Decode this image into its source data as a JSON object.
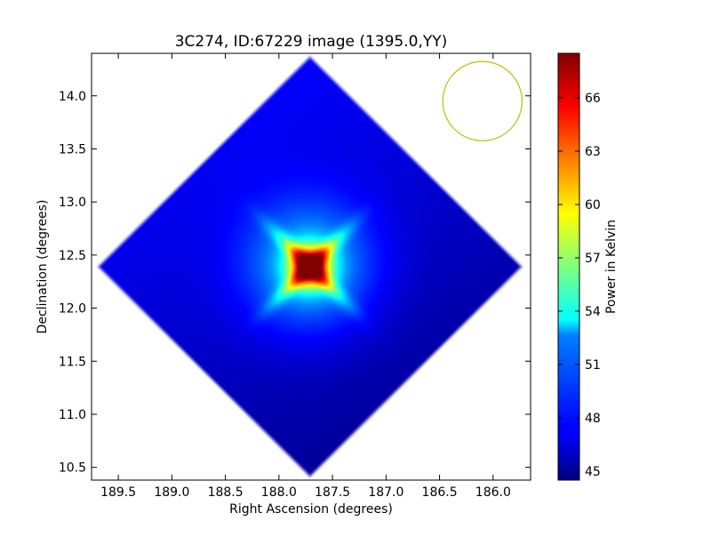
{
  "chart_data": {
    "type": "heatmap",
    "title": "3C274, ID:67229 image (1395.0,YY)",
    "xlabel": "Right Ascension (degrees)",
    "ylabel": "Declination (degrees)",
    "xlim": [
      189.75,
      185.65
    ],
    "ylim": [
      10.38,
      14.4
    ],
    "x_ticks": [
      189.5,
      189.0,
      188.5,
      188.0,
      187.5,
      187.0,
      186.5,
      186.0
    ],
    "x_tick_labels": [
      "189.5",
      "189.0",
      "188.5",
      "188.0",
      "187.5",
      "187.0",
      "186.5",
      "186.0"
    ],
    "y_ticks": [
      10.5,
      11.0,
      11.5,
      12.0,
      12.5,
      13.0,
      13.5,
      14.0
    ],
    "y_tick_labels": [
      "10.5",
      "11.0",
      "11.5",
      "12.0",
      "12.5",
      "13.0",
      "13.5",
      "14.0"
    ],
    "map": {
      "center": [
        187.71,
        12.39
      ],
      "half_width_deg": 2.0,
      "source_peak_kelvin": 68.0,
      "background_kelvin": 46.3
    },
    "beam_circle": {
      "center": [
        186.1,
        13.95
      ],
      "radius_deg": 0.37,
      "color": "#bfbf00"
    },
    "colorbar": {
      "label": "Power in Kelvin",
      "vmin": 44.5,
      "vmax": 68.5,
      "ticks": [
        45,
        48,
        51,
        54,
        57,
        60,
        63,
        66
      ],
      "tick_labels": [
        "45",
        "48",
        "51",
        "54",
        "57",
        "60",
        "63",
        "66"
      ],
      "colormap": "jet"
    }
  }
}
